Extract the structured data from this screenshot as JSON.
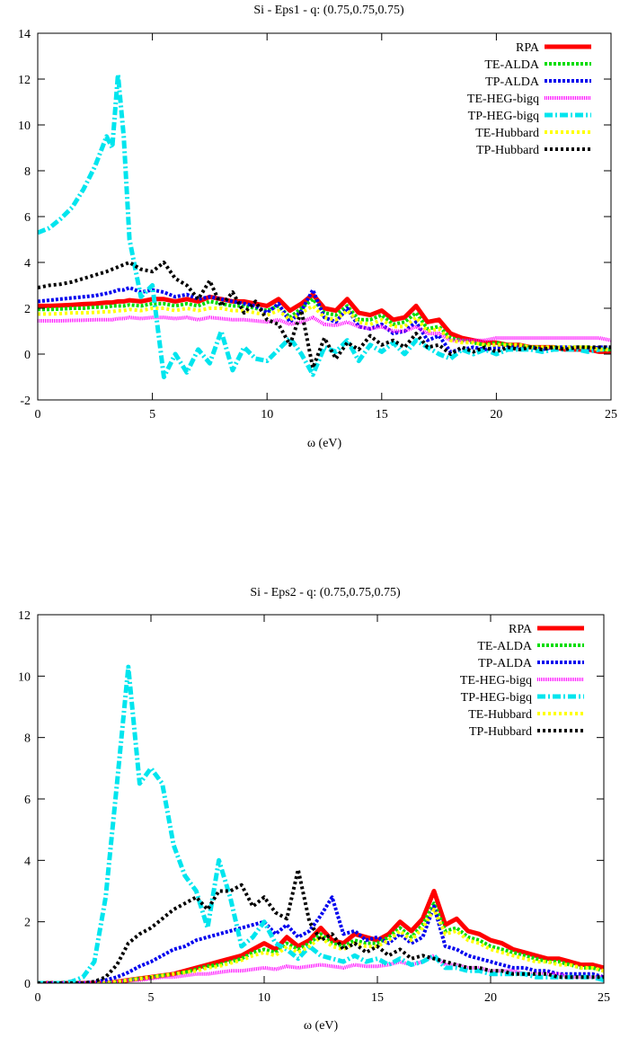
{
  "chart_data": [
    {
      "type": "line",
      "title": "Si - Eps1 - q: (0.75,0.75,0.75)",
      "xlabel": "ω (eV)",
      "ylabel": "",
      "xlim": [
        0,
        25
      ],
      "ylim": [
        -2,
        14
      ],
      "xticks": [
        0,
        5,
        10,
        15,
        20,
        25
      ],
      "yticks": [
        -2,
        0,
        2,
        4,
        6,
        8,
        10,
        12,
        14
      ],
      "grid": false,
      "legend_position": "top-right",
      "x": [
        0,
        0.5,
        1,
        1.5,
        2,
        2.5,
        3,
        3.25,
        3.5,
        3.75,
        4,
        4.5,
        5,
        5.5,
        6,
        6.5,
        7,
        7.5,
        8,
        8.5,
        9,
        9.5,
        10,
        10.5,
        11,
        11.5,
        12,
        12.5,
        13,
        13.5,
        14,
        14.5,
        15,
        15.5,
        16,
        16.5,
        17,
        17.5,
        18,
        18.5,
        19,
        19.5,
        20,
        20.5,
        21,
        21.5,
        22,
        22.5,
        23,
        23.5,
        24,
        24.5,
        25
      ],
      "series": [
        {
          "name": "RPA",
          "color": "#ff0000",
          "dash": "solid",
          "width": 5,
          "values": [
            2.1,
            2.1,
            2.12,
            2.15,
            2.18,
            2.2,
            2.25,
            2.25,
            2.3,
            2.3,
            2.35,
            2.3,
            2.4,
            2.4,
            2.3,
            2.4,
            2.3,
            2.5,
            2.4,
            2.3,
            2.3,
            2.2,
            2.1,
            2.4,
            1.9,
            2.2,
            2.6,
            2.0,
            1.9,
            2.4,
            1.8,
            1.7,
            1.9,
            1.5,
            1.6,
            2.1,
            1.4,
            1.5,
            0.9,
            0.7,
            0.6,
            0.5,
            0.5,
            0.4,
            0.4,
            0.3,
            0.3,
            0.3,
            0.2,
            0.2,
            0.2,
            0.1,
            0.1
          ]
        },
        {
          "name": "TE-ALDA",
          "color": "#00dd00",
          "dash": "3,2",
          "width": 4,
          "values": [
            1.95,
            1.95,
            1.97,
            2.0,
            2.0,
            2.05,
            2.05,
            2.1,
            2.1,
            2.1,
            2.15,
            2.1,
            2.2,
            2.2,
            2.1,
            2.2,
            2.1,
            2.3,
            2.2,
            2.1,
            2.1,
            2.0,
            1.9,
            2.1,
            1.6,
            2.0,
            2.4,
            1.8,
            1.7,
            2.1,
            1.5,
            1.5,
            1.7,
            1.3,
            1.4,
            1.8,
            1.1,
            1.2,
            0.7,
            0.6,
            0.5,
            0.4,
            0.5,
            0.4,
            0.4,
            0.3,
            0.3,
            0.3,
            0.3,
            0.3,
            0.3,
            0.2,
            0.2
          ]
        },
        {
          "name": "TP-ALDA",
          "color": "#0000ee",
          "dash": "3,2",
          "width": 4,
          "values": [
            2.3,
            2.35,
            2.4,
            2.45,
            2.5,
            2.55,
            2.65,
            2.7,
            2.8,
            2.8,
            2.9,
            2.7,
            2.8,
            2.7,
            2.5,
            2.6,
            2.4,
            2.5,
            2.4,
            2.3,
            2.2,
            2.1,
            1.8,
            2.2,
            1.4,
            1.9,
            2.8,
            1.6,
            1.4,
            2.0,
            1.2,
            1.1,
            1.3,
            0.9,
            1.0,
            1.4,
            0.6,
            0.8,
            0.1,
            0.2,
            0.3,
            0.2,
            0.3,
            0.3,
            0.3,
            0.3,
            0.2,
            0.3,
            0.3,
            0.3,
            0.2,
            0.3,
            0.3
          ]
        },
        {
          "name": "TE-HEG-bigq",
          "color": "#ff00ff",
          "dash": "1,1",
          "width": 4,
          "values": [
            1.45,
            1.45,
            1.45,
            1.47,
            1.48,
            1.5,
            1.5,
            1.5,
            1.55,
            1.55,
            1.6,
            1.55,
            1.6,
            1.6,
            1.55,
            1.6,
            1.5,
            1.6,
            1.55,
            1.5,
            1.5,
            1.45,
            1.4,
            1.5,
            1.3,
            1.4,
            1.6,
            1.3,
            1.25,
            1.4,
            1.2,
            1.1,
            1.2,
            1.0,
            1.0,
            1.2,
            0.9,
            0.9,
            0.6,
            0.6,
            0.6,
            0.6,
            0.7,
            0.7,
            0.7,
            0.7,
            0.7,
            0.7,
            0.7,
            0.7,
            0.7,
            0.7,
            0.6
          ]
        },
        {
          "name": "TP-HEG-bigq",
          "color": "#00e5ee",
          "dash": "9,3,2,3",
          "width": 5,
          "values": [
            5.3,
            5.5,
            5.9,
            6.4,
            7.2,
            8.2,
            9.5,
            9.0,
            12.2,
            9.5,
            5.0,
            2.5,
            3.0,
            -1.0,
            0.0,
            -0.8,
            0.2,
            -0.4,
            1.0,
            -0.7,
            0.3,
            -0.2,
            -0.3,
            0.2,
            0.7,
            0.0,
            -0.9,
            0.3,
            0.1,
            0.6,
            -0.3,
            0.4,
            0.1,
            0.5,
            0.0,
            0.6,
            0.3,
            0.0,
            -0.2,
            0.2,
            0.0,
            0.2,
            0.0,
            0.2,
            0.2,
            0.2,
            0.1,
            0.2,
            0.2,
            0.2,
            0.1,
            0.2,
            0.2
          ]
        },
        {
          "name": "TE-Hubbard",
          "color": "#ffff00",
          "dash": "3,3",
          "width": 4,
          "values": [
            1.75,
            1.75,
            1.77,
            1.8,
            1.8,
            1.82,
            1.85,
            1.85,
            1.9,
            1.9,
            1.95,
            1.9,
            2.0,
            2.0,
            1.9,
            2.0,
            1.9,
            2.0,
            2.0,
            1.9,
            1.9,
            1.8,
            1.7,
            1.9,
            1.5,
            1.8,
            2.1,
            1.6,
            1.5,
            1.9,
            1.4,
            1.3,
            1.5,
            1.2,
            1.2,
            1.6,
            1.0,
            1.1,
            0.6,
            0.5,
            0.5,
            0.4,
            0.4,
            0.4,
            0.4,
            0.3,
            0.3,
            0.3,
            0.3,
            0.3,
            0.3,
            0.2,
            0.2
          ]
        },
        {
          "name": "TP-Hubbard",
          "color": "#000000",
          "dash": "3,3",
          "width": 4,
          "values": [
            2.9,
            3.0,
            3.05,
            3.15,
            3.3,
            3.45,
            3.6,
            3.7,
            3.8,
            3.9,
            4.0,
            3.7,
            3.6,
            4.0,
            3.3,
            3.0,
            2.4,
            3.2,
            2.1,
            2.7,
            1.8,
            2.3,
            1.5,
            1.3,
            0.4,
            1.9,
            -0.6,
            0.7,
            -0.2,
            0.5,
            0.2,
            0.8,
            0.4,
            0.6,
            0.3,
            0.9,
            0.3,
            0.4,
            0.0,
            0.3,
            0.1,
            0.3,
            0.1,
            0.3,
            0.2,
            0.3,
            0.2,
            0.3,
            0.2,
            0.3,
            0.3,
            0.3,
            0.3
          ]
        }
      ]
    },
    {
      "type": "line",
      "title": "Si - Eps2 - q: (0.75,0.75,0.75)",
      "xlabel": "ω (eV)",
      "ylabel": "",
      "xlim": [
        0,
        25
      ],
      "ylim": [
        0,
        12
      ],
      "xticks": [
        0,
        5,
        10,
        15,
        20,
        25
      ],
      "yticks": [
        0,
        2,
        4,
        6,
        8,
        10,
        12
      ],
      "grid": false,
      "legend_position": "top-right",
      "x": [
        0,
        0.5,
        1,
        1.5,
        2,
        2.5,
        3,
        3.5,
        4,
        4.5,
        5,
        5.5,
        6,
        6.5,
        7,
        7.5,
        8,
        8.5,
        9,
        9.5,
        10,
        10.5,
        11,
        11.5,
        12,
        12.5,
        13,
        13.5,
        14,
        14.5,
        15,
        15.5,
        16,
        16.5,
        17,
        17.5,
        18,
        18.5,
        19,
        19.5,
        20,
        20.5,
        21,
        21.5,
        22,
        22.5,
        23,
        23.5,
        24,
        24.5,
        25
      ],
      "series": [
        {
          "name": "RPA",
          "color": "#ff0000",
          "dash": "solid",
          "width": 5,
          "values": [
            0,
            0,
            0,
            0,
            0,
            0,
            0,
            0.05,
            0.1,
            0.15,
            0.2,
            0.25,
            0.3,
            0.4,
            0.5,
            0.6,
            0.7,
            0.8,
            0.9,
            1.1,
            1.3,
            1.1,
            1.5,
            1.2,
            1.4,
            1.8,
            1.4,
            1.3,
            1.6,
            1.5,
            1.4,
            1.6,
            2.0,
            1.7,
            2.1,
            3.0,
            1.9,
            2.1,
            1.7,
            1.6,
            1.4,
            1.3,
            1.1,
            1.0,
            0.9,
            0.8,
            0.8,
            0.7,
            0.6,
            0.6,
            0.5
          ]
        },
        {
          "name": "TE-ALDA",
          "color": "#00dd00",
          "dash": "3,2",
          "width": 4,
          "values": [
            0,
            0,
            0,
            0,
            0,
            0,
            0,
            0.05,
            0.1,
            0.15,
            0.2,
            0.25,
            0.3,
            0.35,
            0.45,
            0.55,
            0.6,
            0.7,
            0.8,
            1.0,
            1.1,
            1.0,
            1.3,
            1.1,
            1.3,
            1.6,
            1.3,
            1.2,
            1.4,
            1.3,
            1.3,
            1.5,
            1.8,
            1.5,
            1.9,
            2.6,
            1.7,
            1.8,
            1.5,
            1.4,
            1.2,
            1.1,
            1.0,
            0.9,
            0.8,
            0.7,
            0.7,
            0.6,
            0.5,
            0.5,
            0.4
          ]
        },
        {
          "name": "TP-ALDA",
          "color": "#0000ee",
          "dash": "3,2",
          "width": 4,
          "values": [
            0,
            0,
            0,
            0,
            0,
            0.05,
            0.1,
            0.2,
            0.35,
            0.55,
            0.7,
            0.9,
            1.1,
            1.2,
            1.4,
            1.5,
            1.6,
            1.7,
            1.8,
            1.9,
            2.0,
            1.6,
            1.9,
            1.5,
            1.7,
            2.2,
            2.8,
            1.6,
            1.7,
            1.4,
            1.5,
            1.3,
            1.6,
            1.3,
            1.5,
            2.5,
            1.2,
            1.1,
            0.9,
            0.8,
            0.7,
            0.6,
            0.5,
            0.5,
            0.4,
            0.4,
            0.3,
            0.3,
            0.3,
            0.3,
            0.2
          ]
        },
        {
          "name": "TE-HEG-bigq",
          "color": "#ff00ff",
          "dash": "1,1",
          "width": 4,
          "values": [
            0,
            0,
            0,
            0,
            0,
            0,
            0,
            0.05,
            0.1,
            0.1,
            0.15,
            0.2,
            0.2,
            0.25,
            0.3,
            0.3,
            0.35,
            0.4,
            0.4,
            0.45,
            0.5,
            0.45,
            0.55,
            0.5,
            0.55,
            0.6,
            0.55,
            0.5,
            0.6,
            0.55,
            0.55,
            0.6,
            0.7,
            0.6,
            0.7,
            0.9,
            0.6,
            0.6,
            0.5,
            0.5,
            0.4,
            0.4,
            0.4,
            0.3,
            0.3,
            0.3,
            0.3,
            0.2,
            0.2,
            0.2,
            0.2
          ]
        },
        {
          "name": "TP-HEG-bigq",
          "color": "#00e5ee",
          "dash": "9,3,2,3",
          "width": 5,
          "values": [
            0,
            0,
            0,
            0.05,
            0.2,
            0.7,
            2.8,
            6.5,
            10.3,
            6.5,
            7.0,
            6.5,
            4.5,
            3.5,
            3.0,
            1.8,
            4.0,
            2.8,
            1.2,
            1.5,
            2.0,
            1.3,
            1.1,
            0.8,
            1.2,
            0.9,
            0.8,
            0.7,
            0.9,
            0.7,
            0.8,
            0.6,
            0.8,
            0.6,
            0.7,
            0.9,
            0.5,
            0.5,
            0.4,
            0.4,
            0.3,
            0.3,
            0.3,
            0.3,
            0.2,
            0.2,
            0.2,
            0.2,
            0.2,
            0.2,
            0.1
          ]
        },
        {
          "name": "TE-Hubbard",
          "color": "#ffff00",
          "dash": "3,3",
          "width": 4,
          "values": [
            0,
            0,
            0,
            0,
            0,
            0,
            0,
            0.05,
            0.1,
            0.15,
            0.2,
            0.25,
            0.3,
            0.35,
            0.4,
            0.5,
            0.55,
            0.65,
            0.75,
            0.9,
            1.0,
            0.9,
            1.2,
            1.0,
            1.2,
            1.5,
            1.2,
            1.1,
            1.3,
            1.2,
            1.2,
            1.4,
            1.7,
            1.4,
            1.8,
            2.4,
            1.6,
            1.7,
            1.4,
            1.3,
            1.1,
            1.0,
            0.9,
            0.8,
            0.7,
            0.7,
            0.6,
            0.6,
            0.5,
            0.5,
            0.4
          ]
        },
        {
          "name": "TP-Hubbard",
          "color": "#000000",
          "dash": "3,3",
          "width": 4,
          "values": [
            0,
            0,
            0,
            0,
            0,
            0.05,
            0.2,
            0.6,
            1.3,
            1.6,
            1.8,
            2.1,
            2.4,
            2.6,
            2.8,
            2.4,
            3.0,
            3.0,
            3.2,
            2.5,
            2.8,
            2.3,
            2.1,
            3.7,
            2.0,
            1.4,
            1.6,
            1.1,
            1.3,
            1.0,
            1.2,
            0.9,
            1.1,
            0.8,
            0.9,
            0.8,
            0.7,
            0.6,
            0.5,
            0.5,
            0.4,
            0.4,
            0.3,
            0.3,
            0.3,
            0.3,
            0.2,
            0.2,
            0.2,
            0.2,
            0.2
          ]
        }
      ]
    }
  ]
}
